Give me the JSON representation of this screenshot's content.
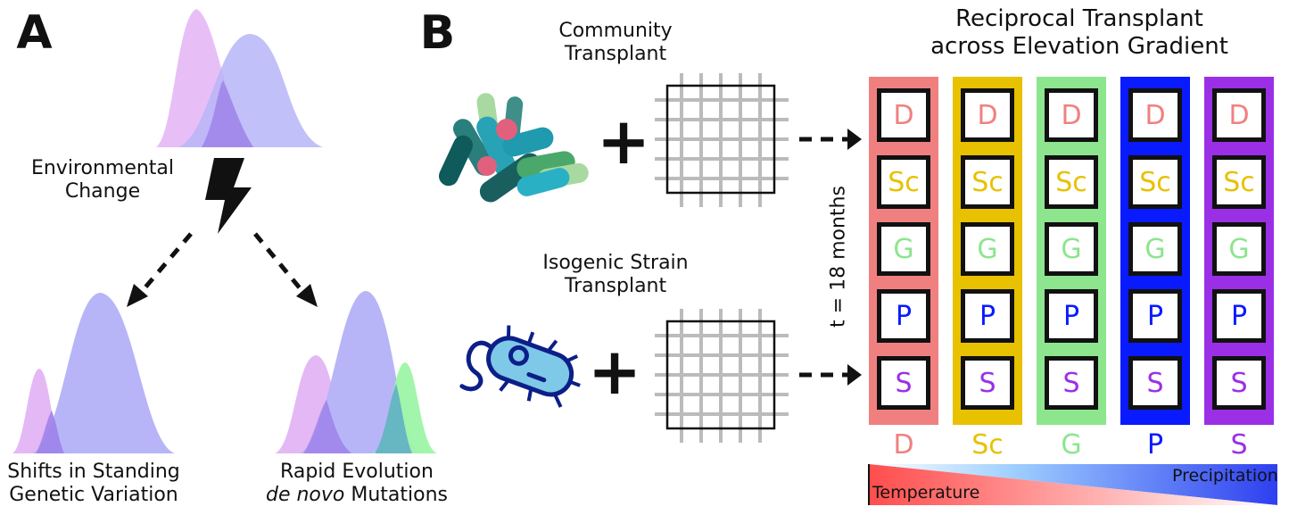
{
  "panel_a": {
    "letter": "A",
    "env_change_line1": "Environmental",
    "env_change_line2": "Change",
    "standing_line1": "Shifts in Standing",
    "standing_line2": "Genetic Variation",
    "rapid_line1": "Rapid Evolution",
    "rapid_line2_italic": "de novo",
    "rapid_line2_rest": " Mutations"
  },
  "panel_b": {
    "letter": "B",
    "community_line1": "Community",
    "community_line2": "Transplant",
    "isogenic_line1": "Isogenic Strain",
    "isogenic_line2": "Transplant",
    "plus": "+",
    "time_label": "t = 18 months",
    "title_line1": "Reciprocal Transplant",
    "title_line2": "across Elevation Gradient",
    "sites": [
      {
        "code": "D",
        "color": "#f08080"
      },
      {
        "code": "Sc",
        "color": "#e8c100"
      },
      {
        "code": "G",
        "color": "#8de58d"
      },
      {
        "code": "P",
        "color": "#0a1aff"
      },
      {
        "code": "S",
        "color": "#9b2fe6"
      }
    ],
    "cell_text_colors": {
      "D": "#f08080",
      "Sc": "#e8c100",
      "G": "#8de58d",
      "P": "#0a1aff",
      "S": "#9b2fe6"
    },
    "rows": [
      "D",
      "Sc",
      "G",
      "P",
      "S"
    ],
    "gradient": {
      "left_label": "Temperature",
      "right_label": "Precipitation",
      "temp_color": "#ff4d4d",
      "precip_color": "#2e3ff0"
    }
  },
  "colors": {
    "purple_dist": "#e4b8f5",
    "blue_dist": "#b7b5f7",
    "green_dist": "#9df5a8",
    "overlap": "#9a7ce8"
  }
}
